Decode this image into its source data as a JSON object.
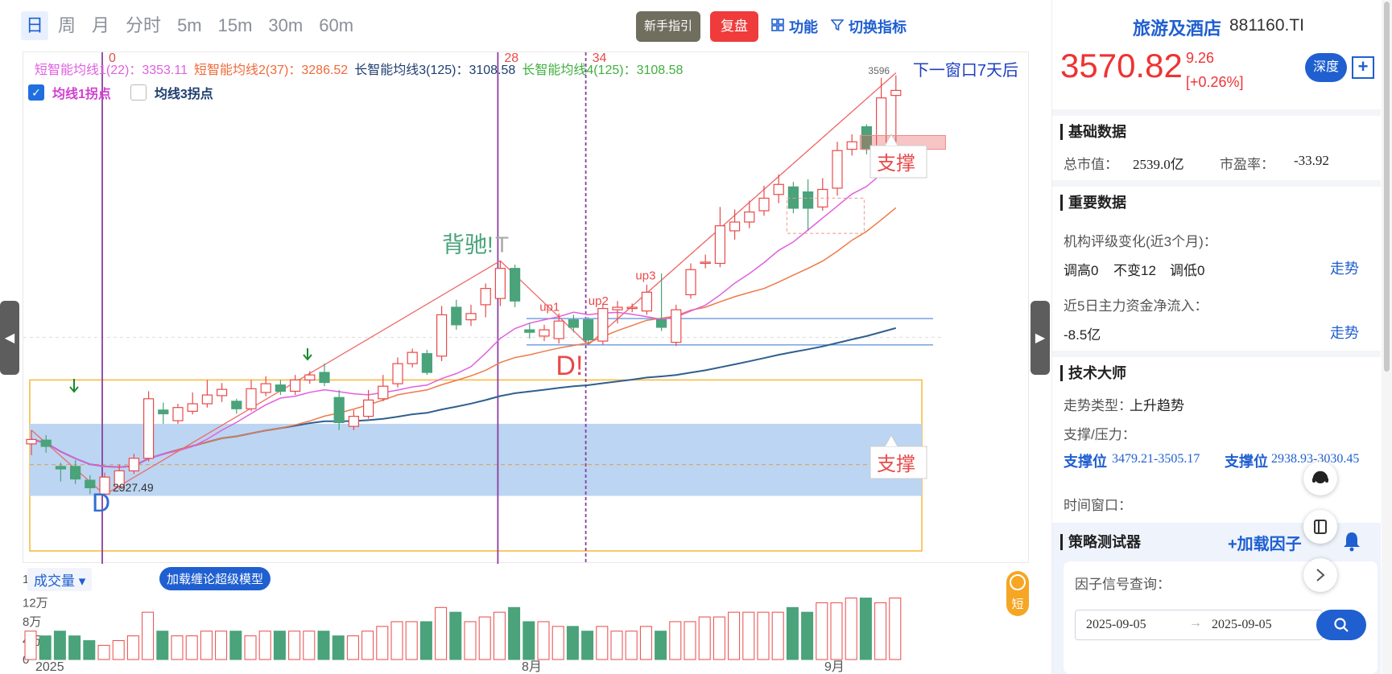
{
  "period_tabs": [
    "日",
    "周",
    "月",
    "分时",
    "5m",
    "15m",
    "30m",
    "60m"
  ],
  "active_period": "日",
  "top_actions": {
    "guide": "新手指引",
    "review": "复盘",
    "function": "功能",
    "switch_indicator": "切换指标"
  },
  "legend": {
    "ma1": "短智能均线1(22)：3353.11",
    "ma2": "短智能均线2(37)：3286.52",
    "ma3": "长智能均线3(125)：3108.58",
    "ma4": "长智能均线4(125)：3108.58"
  },
  "pivots": {
    "pivot1": "均线1拐点",
    "pivot1_checked": true,
    "pivot3": "均线3拐点",
    "pivot3_checked": false
  },
  "window_note": "下一窗口7天后",
  "annotations": {
    "divergence": "背驰!",
    "divergence_t": "T",
    "d_low": "D",
    "d_low_price": "2927.49",
    "d_mid": "D!",
    "up1": "up1",
    "up2": "up2",
    "up3": "up3",
    "support": "支撑",
    "top_price": "3596",
    "vline_labels": [
      "0",
      "28",
      "34"
    ]
  },
  "volume": {
    "select_label": "成交量",
    "load_model": "加载缠论超级模型",
    "short_badge": "短",
    "y_labels": [
      "17万",
      "12万",
      "8万",
      "4万",
      "0"
    ],
    "x_labels": [
      "2025",
      "8月",
      "9月"
    ]
  },
  "colors": {
    "up": "#e84a4a",
    "down": "#4aa37a",
    "ma1": "#e060e0",
    "ma2": "#ee7a4a",
    "ma3": "#2f5f8f",
    "ma4": "#3faf3f",
    "accent": "#1f5fd0"
  },
  "stock": {
    "name": "旅游及酒店",
    "code": "881160.TI",
    "price": "3570.82",
    "change": "9.26",
    "change_pct": "[+0.26%]",
    "depth": "深度"
  },
  "basic": {
    "title": "基础数据",
    "mktcap_label": "总市值：",
    "mktcap": "2539.0亿",
    "pe_label": "市盈率：",
    "pe": "-33.92"
  },
  "important": {
    "title": "重要数据",
    "rating_label": "机构评级变化(近3个月)：",
    "up": "调高0",
    "same": "不变12",
    "down": "调低0",
    "trend": "走势",
    "flow_label": "近5日主力资金净流入：",
    "flow": "-8.5亿",
    "trend2": "走势"
  },
  "tech": {
    "title": "技术大师",
    "type_label": "走势类型：",
    "type": "上升趋势",
    "sr_label": "支撑/压力：",
    "support1_label": "支撑位",
    "support1": "3479.21-3505.17",
    "support2_label": "支撑位",
    "support2": "2938.93-3030.45",
    "window_label": "时间窗口："
  },
  "strategy": {
    "title": "策略测试器",
    "load_factor": "+加载因子",
    "query_label": "因子信号查询：",
    "date_from": "2025-09-05",
    "date_to": "2025-09-05"
  },
  "chart_data": {
    "type": "candlestick",
    "title": "",
    "ylim": [
      2850,
      3620
    ],
    "candles": [
      {
        "o": 3008,
        "c": 3015,
        "h": 3030,
        "l": 2990
      },
      {
        "o": 3014,
        "c": 3004,
        "h": 3022,
        "l": 2994
      },
      {
        "o": 2972,
        "c": 2968,
        "h": 2978,
        "l": 2948
      },
      {
        "o": 2972,
        "c": 2952,
        "h": 2982,
        "l": 2944
      },
      {
        "o": 2950,
        "c": 2938,
        "h": 2958,
        "l": 2928
      },
      {
        "o": 2928,
        "c": 2955,
        "h": 2962,
        "l": 2927
      },
      {
        "o": 2940,
        "c": 2965,
        "h": 2975,
        "l": 2935
      },
      {
        "o": 2965,
        "c": 2985,
        "h": 2992,
        "l": 2960
      },
      {
        "o": 2985,
        "c": 3080,
        "h": 3092,
        "l": 2980
      },
      {
        "o": 3062,
        "c": 3056,
        "h": 3074,
        "l": 3040
      },
      {
        "o": 3045,
        "c": 3066,
        "h": 3072,
        "l": 3040
      },
      {
        "o": 3060,
        "c": 3072,
        "h": 3090,
        "l": 3055
      },
      {
        "o": 3072,
        "c": 3086,
        "h": 3110,
        "l": 3066
      },
      {
        "o": 3085,
        "c": 3095,
        "h": 3105,
        "l": 3075
      },
      {
        "o": 3076,
        "c": 3064,
        "h": 3080,
        "l": 3056
      },
      {
        "o": 3064,
        "c": 3096,
        "h": 3110,
        "l": 3060
      },
      {
        "o": 3090,
        "c": 3104,
        "h": 3116,
        "l": 3084
      },
      {
        "o": 3102,
        "c": 3092,
        "h": 3110,
        "l": 3086
      },
      {
        "o": 3092,
        "c": 3110,
        "h": 3118,
        "l": 3086
      },
      {
        "o": 3110,
        "c": 3118,
        "h": 3124,
        "l": 3104
      },
      {
        "o": 3122,
        "c": 3106,
        "h": 3136,
        "l": 3100
      },
      {
        "o": 3082,
        "c": 3042,
        "h": 3094,
        "l": 3030
      },
      {
        "o": 3036,
        "c": 3052,
        "h": 3062,
        "l": 3030
      },
      {
        "o": 3052,
        "c": 3078,
        "h": 3094,
        "l": 3048
      },
      {
        "o": 3080,
        "c": 3100,
        "h": 3118,
        "l": 3076
      },
      {
        "o": 3104,
        "c": 3136,
        "h": 3146,
        "l": 3098
      },
      {
        "o": 3136,
        "c": 3154,
        "h": 3160,
        "l": 3130
      },
      {
        "o": 3152,
        "c": 3122,
        "h": 3158,
        "l": 3118
      },
      {
        "o": 3148,
        "c": 3214,
        "h": 3228,
        "l": 3140
      },
      {
        "o": 3226,
        "c": 3198,
        "h": 3238,
        "l": 3190
      },
      {
        "o": 3206,
        "c": 3216,
        "h": 3230,
        "l": 3196
      },
      {
        "o": 3230,
        "c": 3256,
        "h": 3264,
        "l": 3210
      },
      {
        "o": 3240,
        "c": 3288,
        "h": 3300,
        "l": 3228
      },
      {
        "o": 3288,
        "c": 3236,
        "h": 3294,
        "l": 3226
      },
      {
        "o": 3190,
        "c": 3186,
        "h": 3200,
        "l": 3176
      },
      {
        "o": 3180,
        "c": 3190,
        "h": 3198,
        "l": 3172
      },
      {
        "o": 3176,
        "c": 3204,
        "h": 3216,
        "l": 3168
      },
      {
        "o": 3206,
        "c": 3194,
        "h": 3214,
        "l": 3186
      },
      {
        "o": 3206,
        "c": 3174,
        "h": 3210,
        "l": 3166
      },
      {
        "o": 3172,
        "c": 3224,
        "h": 3232,
        "l": 3166
      },
      {
        "o": 3222,
        "c": 3226,
        "h": 3236,
        "l": 3200
      },
      {
        "o": 3224,
        "c": 3226,
        "h": 3232,
        "l": 3218
      },
      {
        "o": 3220,
        "c": 3250,
        "h": 3262,
        "l": 3214
      },
      {
        "o": 3206,
        "c": 3194,
        "h": 3280,
        "l": 3188
      },
      {
        "o": 3170,
        "c": 3222,
        "h": 3230,
        "l": 3164
      },
      {
        "o": 3246,
        "c": 3286,
        "h": 3296,
        "l": 3240
      },
      {
        "o": 3296,
        "c": 3298,
        "h": 3310,
        "l": 3288
      },
      {
        "o": 3296,
        "c": 3356,
        "h": 3386,
        "l": 3290
      },
      {
        "o": 3348,
        "c": 3362,
        "h": 3382,
        "l": 3334
      },
      {
        "o": 3362,
        "c": 3378,
        "h": 3396,
        "l": 3352
      },
      {
        "o": 3380,
        "c": 3400,
        "h": 3420,
        "l": 3372
      },
      {
        "o": 3406,
        "c": 3422,
        "h": 3438,
        "l": 3392
      },
      {
        "o": 3418,
        "c": 3384,
        "h": 3426,
        "l": 3376
      },
      {
        "o": 3410,
        "c": 3384,
        "h": 3430,
        "l": 3348
      },
      {
        "o": 3386,
        "c": 3414,
        "h": 3432,
        "l": 3380
      },
      {
        "o": 3416,
        "c": 3476,
        "h": 3490,
        "l": 3404
      },
      {
        "o": 3478,
        "c": 3490,
        "h": 3502,
        "l": 3468
      },
      {
        "o": 3514,
        "c": 3478,
        "h": 3518,
        "l": 3470
      },
      {
        "o": 3474,
        "c": 3560,
        "h": 3592,
        "l": 3462
      },
      {
        "o": 3564,
        "c": 3572,
        "h": 3596,
        "l": 3440
      }
    ],
    "volume_wan": [
      6,
      5,
      6,
      5,
      4,
      3,
      4,
      5,
      10,
      6,
      5,
      5,
      6,
      6,
      6,
      5,
      6,
      6,
      6,
      6,
      6,
      5,
      5,
      6,
      7,
      8,
      8,
      8,
      11,
      10,
      8,
      9,
      10,
      11,
      8,
      8,
      7,
      7,
      6,
      7,
      6,
      6,
      7,
      6,
      8,
      8,
      9,
      9,
      10,
      10,
      10,
      10,
      11,
      10,
      12,
      12,
      13,
      13,
      12,
      13
    ]
  }
}
